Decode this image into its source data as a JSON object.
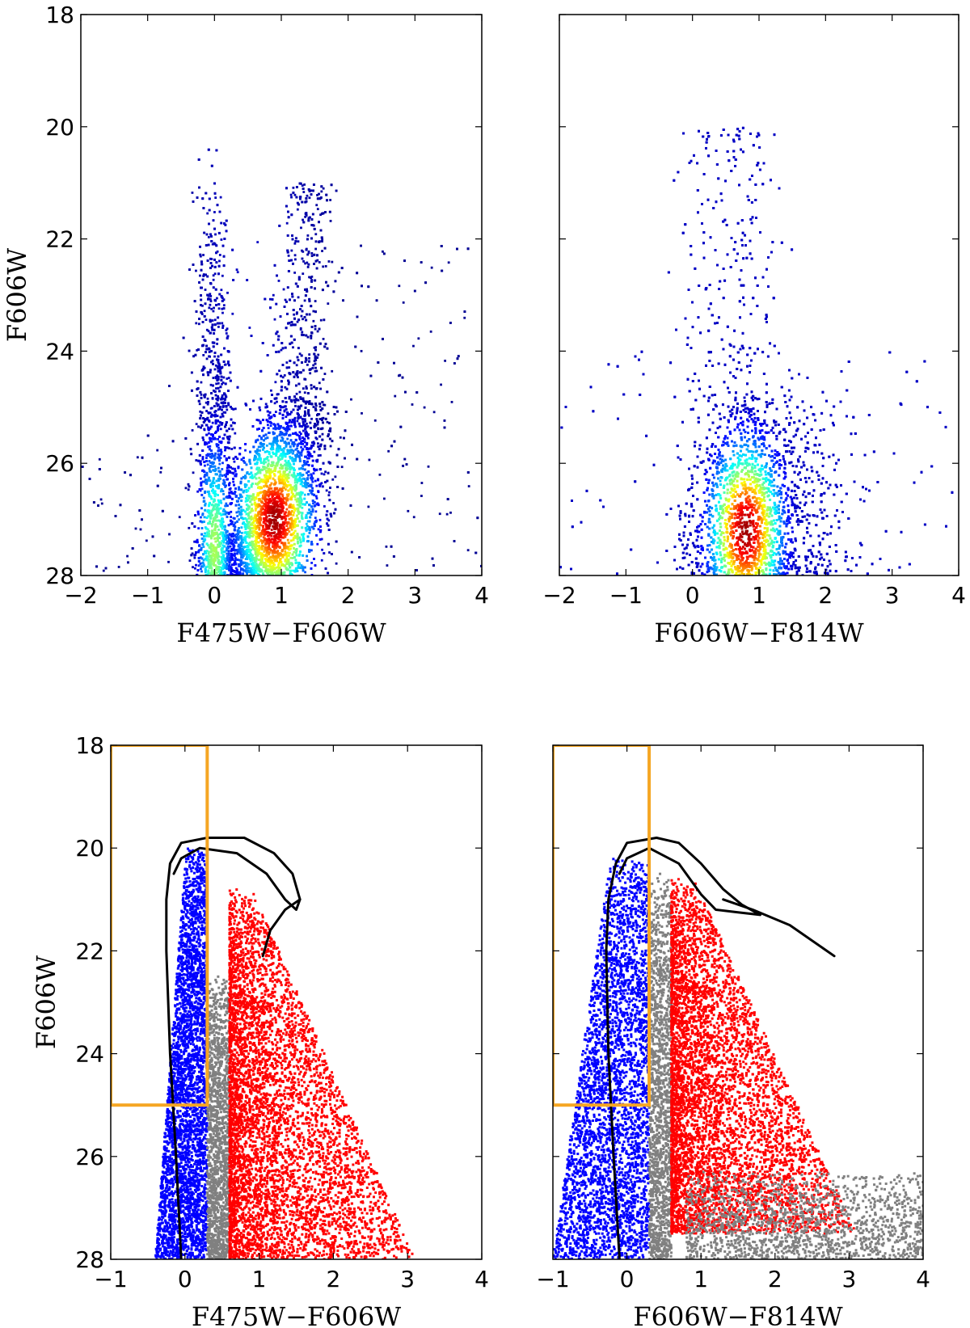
{
  "chart_data": [
    {
      "type": "scatter",
      "panel": "top-left",
      "rendering": "density-colored point cloud (jet colormap: blue low to red high)",
      "xlabel": "F475W−F606W",
      "ylabel": "F606W",
      "xlim": [
        -2,
        4
      ],
      "ylim": [
        28,
        18
      ],
      "xticks": [
        "−2",
        "−1",
        "0",
        "1",
        "2",
        "3",
        "4"
      ],
      "yticks": [
        "18",
        "20",
        "22",
        "24",
        "26",
        "28"
      ],
      "density_features": [
        {
          "name": "blue plume",
          "x": 0.0,
          "y": [
            20,
            28
          ]
        },
        {
          "name": "red giant/faint red sequence",
          "x": [
            0.5,
            1.6
          ],
          "y": [
            21,
            28
          ],
          "peak": [
            0.9,
            27.0
          ]
        }
      ]
    },
    {
      "type": "scatter",
      "panel": "top-right",
      "rendering": "density-colored point cloud (jet colormap: blue low to red high)",
      "xlabel": "F606W−F814W",
      "ylabel": "",
      "xlim": [
        -2,
        4
      ],
      "ylim": [
        28,
        18
      ],
      "xticks": [
        "−2",
        "−1",
        "0",
        "1",
        "2",
        "3",
        "4"
      ],
      "yticks": [],
      "density_features": [
        {
          "name": "main cloud",
          "x": [
            -0.2,
            1.8
          ],
          "y": [
            20,
            28
          ],
          "peak": [
            0.8,
            27.2
          ]
        }
      ]
    },
    {
      "type": "scatter",
      "panel": "bottom-left",
      "xlabel": "F475W−F606W",
      "ylabel": "F606W",
      "xlim": [
        -1,
        4
      ],
      "ylim": [
        28,
        18
      ],
      "xticks": [
        "−1",
        "0",
        "1",
        "2",
        "3",
        "4"
      ],
      "yticks": [
        "18",
        "20",
        "22",
        "24",
        "26",
        "28"
      ],
      "point_groups": [
        {
          "color": "#0000ff",
          "x_range": [
            -0.4,
            0.3
          ],
          "y_range": [
            20.0,
            28
          ]
        },
        {
          "color": "#808080",
          "x_range": [
            0.3,
            0.6
          ],
          "y_range": [
            22.5,
            28
          ]
        },
        {
          "color": "#ff0000",
          "x_range": [
            0.6,
            3.2
          ],
          "y_range": [
            20.8,
            28
          ]
        }
      ],
      "isochrone": [
        [
          -0.05,
          28
        ],
        [
          -0.12,
          26
        ],
        [
          -0.2,
          24
        ],
        [
          -0.25,
          22
        ],
        [
          -0.25,
          21
        ],
        [
          -0.2,
          20.3
        ],
        [
          -0.05,
          19.9
        ],
        [
          0.3,
          19.8
        ],
        [
          0.8,
          19.8
        ],
        [
          1.2,
          20.1
        ],
        [
          1.45,
          20.5
        ],
        [
          1.55,
          21.0
        ],
        [
          1.5,
          21.2
        ],
        [
          1.35,
          21.0
        ],
        [
          1.1,
          20.5
        ],
        [
          0.7,
          20.1
        ],
        [
          0.2,
          20.0
        ],
        [
          -0.05,
          20.2
        ],
        [
          -0.15,
          20.5
        ]
      ],
      "isochrone_branch": [
        [
          1.55,
          21.0
        ],
        [
          1.35,
          21.2
        ],
        [
          1.15,
          21.6
        ],
        [
          1.05,
          22.1
        ]
      ],
      "selection_box": {
        "x": [
          -1,
          0.3
        ],
        "y": [
          18,
          25
        ]
      }
    },
    {
      "type": "scatter",
      "panel": "bottom-right",
      "xlabel": "F606W−F814W",
      "ylabel": "",
      "xlim": [
        -1,
        4
      ],
      "ylim": [
        28,
        18
      ],
      "xticks": [
        "−1",
        "0",
        "1",
        "2",
        "3",
        "4"
      ],
      "yticks": [],
      "point_groups": [
        {
          "color": "#0000ff",
          "x_range": [
            -1.0,
            0.3
          ],
          "y_range": [
            20.2,
            28
          ]
        },
        {
          "color": "#808080",
          "x_range": [
            0.3,
            0.6
          ],
          "y_range": [
            20.5,
            28
          ]
        },
        {
          "color": "#ff0000",
          "x_range": [
            0.6,
            3.1
          ],
          "y_range": [
            20.6,
            27.5
          ]
        },
        {
          "color": "#808080",
          "x_range": [
            0.8,
            4.0
          ],
          "y_range": [
            26.3,
            28
          ]
        }
      ],
      "isochrone": [
        [
          -0.1,
          28
        ],
        [
          -0.18,
          26
        ],
        [
          -0.25,
          24
        ],
        [
          -0.28,
          22
        ],
        [
          -0.25,
          21
        ],
        [
          -0.15,
          20.3
        ],
        [
          0.0,
          19.9
        ],
        [
          0.4,
          19.8
        ],
        [
          0.7,
          19.9
        ],
        [
          1.0,
          20.3
        ],
        [
          1.3,
          20.8
        ],
        [
          1.55,
          21.1
        ],
        [
          1.8,
          21.3
        ],
        [
          1.5,
          21.25
        ],
        [
          1.2,
          21.2
        ],
        [
          1.0,
          20.9
        ],
        [
          0.7,
          20.3
        ],
        [
          0.3,
          20.0
        ],
        [
          0.0,
          20.2
        ],
        [
          -0.1,
          20.5
        ]
      ],
      "isochrone_branch": [
        [
          1.3,
          21.0
        ],
        [
          1.7,
          21.2
        ],
        [
          2.2,
          21.5
        ],
        [
          2.8,
          22.1
        ]
      ],
      "selection_box": {
        "x": [
          -1,
          0.3
        ],
        "y": [
          18,
          25
        ]
      }
    }
  ]
}
